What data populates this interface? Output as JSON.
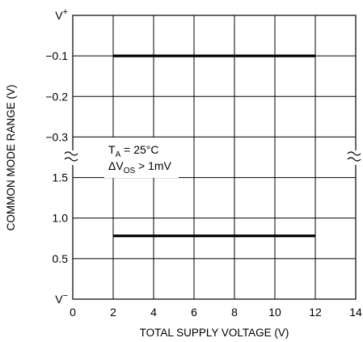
{
  "chart_data": {
    "type": "line",
    "title": "",
    "xlabel": "TOTAL SUPPLY VOLTAGE (V)",
    "ylabel": "COMMON MODE RANGE (V)",
    "xlim": [
      0,
      14
    ],
    "x_ticks": [
      0,
      2,
      4,
      6,
      8,
      10,
      12,
      14
    ],
    "x_tick_labels": [
      "0",
      "2",
      "4",
      "6",
      "8",
      "10",
      "12",
      "14"
    ],
    "y_axis_broken": true,
    "y_upper_ticks": [
      "V+",
      "−0.1",
      "−0.2",
      "−0.3"
    ],
    "y_lower_ticks": [
      "1.5",
      "1.0",
      "0.5",
      "V−"
    ],
    "y_tick_values_upper": [
      0,
      -0.1,
      -0.2,
      -0.3
    ],
    "y_tick_values_lower": [
      1.5,
      1.0,
      0.5,
      0
    ],
    "grid": true,
    "series": [
      {
        "x": [
          2,
          12
        ],
        "y": [
          -0.1,
          -0.1
        ],
        "reference": "V+",
        "color": "#000000"
      },
      {
        "x": [
          2,
          12
        ],
        "y": [
          0.78,
          0.78
        ],
        "reference": "V−",
        "color": "#000000"
      }
    ],
    "annotations": {
      "condition1_main": "T",
      "condition1_sub": "A",
      "condition1_rest": " = 25°C",
      "condition2_main": "ΔV",
      "condition2_sub": "OS",
      "condition2_rest": " > 1mV"
    },
    "break_symbol": "≈"
  }
}
